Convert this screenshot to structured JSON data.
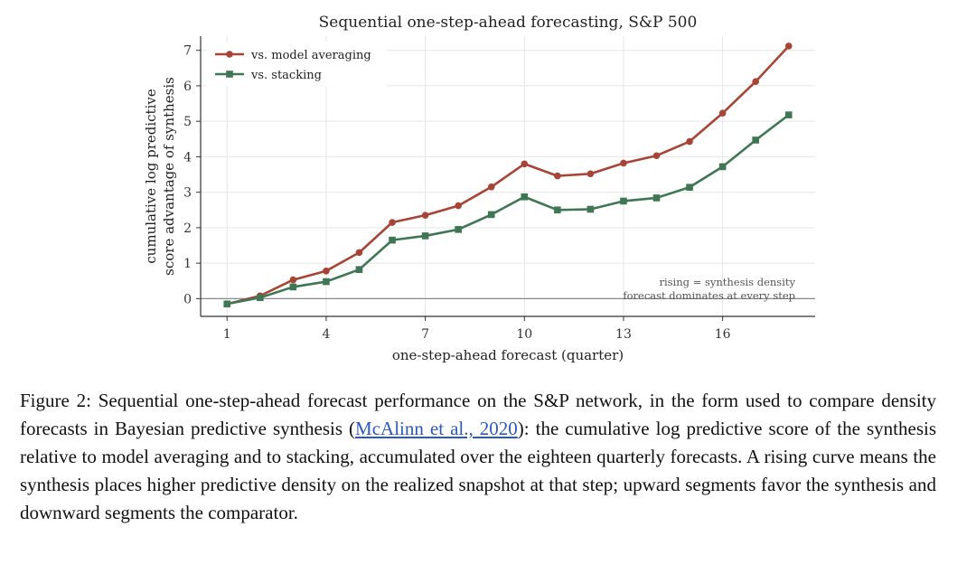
{
  "figure": {
    "caption_label": "Figure 2:",
    "caption_before_link": " Sequential one-step-ahead forecast performance on the S&P network, in the form used to compare density forecasts in Bayesian predictive synthesis (",
    "caption_link": "McAlinn et al., 2020",
    "caption_after_link": "): the cumulative log predictive score of the synthesis relative to model averaging and to stacking, accumulated over the eighteen quarterly forecasts. A rising curve means the synthesis places higher predictive density on the realized snapshot at that step; upward segments favor the synthesis and downward segments the comparator."
  },
  "chart_data": {
    "type": "line",
    "title": "Sequential one-step-ahead forecasting, S&P 500",
    "xlabel": "one-step-ahead forecast (quarter)",
    "ylabel_lines": [
      "cumulative log predictive",
      "score advantage of synthesis"
    ],
    "x": [
      1,
      2,
      3,
      4,
      5,
      6,
      7,
      8,
      9,
      10,
      11,
      12,
      13,
      14,
      15,
      16,
      17,
      18
    ],
    "xlim": [
      0.2,
      18.8
    ],
    "ylim": [
      -0.5,
      7.4
    ],
    "xticks": [
      1,
      4,
      7,
      10,
      13,
      16
    ],
    "yticks": [
      0,
      1,
      2,
      3,
      4,
      5,
      6,
      7
    ],
    "grid": true,
    "legend_position": "top-left",
    "zero_line": true,
    "annotation_lines": [
      "rising = synthesis density",
      "forecast dominates at every step"
    ],
    "series": [
      {
        "name": "vs. model averaging",
        "color": "#a84436",
        "marker": "circle",
        "values": [
          -0.15,
          0.08,
          0.53,
          0.78,
          1.3,
          2.15,
          2.35,
          2.62,
          3.15,
          3.8,
          3.46,
          3.52,
          3.82,
          4.03,
          4.43,
          5.23,
          6.12,
          7.12
        ]
      },
      {
        "name": "vs. stacking",
        "color": "#3f7654",
        "marker": "square",
        "values": [
          -0.15,
          0.03,
          0.33,
          0.48,
          0.82,
          1.65,
          1.77,
          1.95,
          2.37,
          2.87,
          2.5,
          2.52,
          2.75,
          2.84,
          3.14,
          3.72,
          4.47,
          5.18
        ]
      }
    ]
  }
}
